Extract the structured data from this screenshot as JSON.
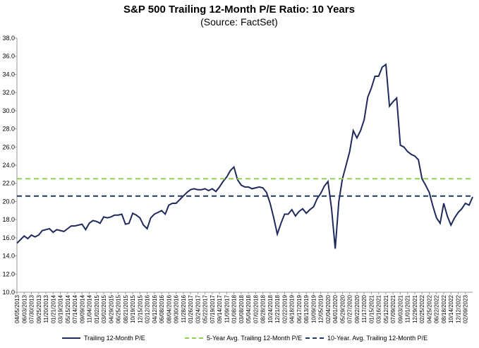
{
  "chart_data": {
    "type": "line",
    "title": "S&P 500 Trailing 12-Month P/E Ratio: 10 Years",
    "subtitle": "(Source: FactSet)",
    "categories": [
      "04/05/2013",
      null,
      "06/03/2013",
      null,
      "07/30/2013",
      null,
      "09/25/2013",
      null,
      "11/20/2013",
      null,
      "01/21/2014",
      null,
      "03/19/2014",
      null,
      "05/15/2014",
      null,
      "07/14/2014",
      null,
      "09/09/2014",
      null,
      "11/04/2014",
      null,
      "01/02/2015",
      null,
      "03/02/2015",
      null,
      "04/29/2015",
      null,
      "06/25/2015",
      null,
      "08/21/2015",
      null,
      "10/19/2015",
      null,
      "12/15/2015",
      null,
      "02/12/2016",
      null,
      "04/12/2016",
      null,
      "06/08/2016",
      null,
      "08/04/2016",
      null,
      "09/30/2016",
      null,
      "11/28/2016",
      null,
      "01/26/2017",
      null,
      "03/24/2017",
      null,
      "05/22/2017",
      null,
      "07/19/2017",
      null,
      "09/14/2017",
      null,
      "11/09/2017",
      null,
      "01/08/2018",
      null,
      "03/08/2018",
      null,
      "05/04/2018",
      null,
      "07/02/2018",
      null,
      "08/28/2018",
      null,
      "10/24/2018",
      null,
      "12/21/2018",
      null,
      "02/22/2019",
      null,
      "04/18/2019",
      null,
      "06/17/2019",
      null,
      "08/13/2019",
      null,
      "10/09/2019",
      null,
      "12/05/2019",
      null,
      "02/04/2020",
      null,
      "04/01/2020",
      null,
      "05/29/2020",
      null,
      "07/27/2020",
      null,
      "09/22/2020",
      null,
      "11/17/2020",
      null,
      "01/15/2021",
      null,
      "03/16/2021",
      null,
      "05/12/2021",
      null,
      "07/09/2021",
      null,
      "09/03/2021",
      null,
      "11/01/2021",
      null,
      "12/29/2021",
      null,
      "02/25/2022",
      null,
      "04/25/2022",
      null,
      "06/22/2022",
      null,
      "08/18/2022",
      null,
      "10/14/2022",
      null,
      "12/12/2022",
      null,
      "02/09/2023",
      null,
      null
    ],
    "series": [
      {
        "name": "Trailing 12-Month P/E",
        "color": "#1f2a5c",
        "values": [
          15.4,
          15.8,
          16.2,
          15.9,
          16.3,
          16.1,
          16.3,
          16.8,
          16.9,
          17.0,
          16.6,
          16.9,
          16.8,
          16.7,
          17.0,
          17.3,
          17.3,
          17.4,
          17.5,
          16.9,
          17.6,
          17.9,
          17.8,
          17.6,
          18.3,
          18.2,
          18.3,
          18.5,
          18.5,
          18.6,
          17.5,
          17.6,
          18.7,
          18.5,
          18.2,
          17.4,
          17.0,
          18.2,
          18.6,
          18.8,
          19.0,
          18.6,
          19.6,
          19.8,
          19.8,
          20.2,
          20.6,
          21.0,
          21.3,
          21.4,
          21.3,
          21.3,
          21.4,
          21.2,
          21.4,
          21.1,
          21.6,
          22.2,
          22.7,
          23.4,
          23.8,
          22.4,
          21.8,
          21.6,
          21.6,
          21.4,
          21.5,
          21.6,
          21.5,
          21.0,
          19.8,
          18.2,
          16.4,
          17.6,
          18.6,
          18.6,
          19.1,
          18.4,
          18.9,
          19.2,
          18.7,
          19.1,
          19.4,
          20.3,
          20.9,
          21.7,
          22.2,
          19.2,
          14.8,
          20.0,
          22.5,
          24.0,
          25.5,
          27.8,
          27.0,
          27.8,
          29.0,
          31.5,
          32.5,
          33.8,
          33.8,
          34.8,
          35.1,
          30.5,
          31.0,
          31.4,
          26.2,
          26.0,
          25.5,
          25.2,
          25.0,
          24.6,
          22.5,
          21.8,
          21.0,
          19.5,
          18.2,
          17.6,
          19.8,
          18.4,
          17.4,
          18.2,
          18.8,
          19.2,
          19.8,
          19.6,
          20.5
        ]
      },
      {
        "name": "5-Year Avg. Trailing 12-Month P/E",
        "color": "#92d050",
        "value": 22.5,
        "dashed": true
      },
      {
        "name": "10-Year. Avg. Trailing 12-Month P/E",
        "color": "#1f3864",
        "value": 20.6,
        "dashed": true
      }
    ],
    "ylim": [
      10,
      38
    ],
    "yticks": [
      {
        "value": 10,
        "label": "10.0"
      },
      {
        "value": 12,
        "label": "12.0"
      },
      {
        "value": 14,
        "label": "14.0"
      },
      {
        "value": 16,
        "label": "16.0"
      },
      {
        "value": 18,
        "label": "18.0"
      },
      {
        "value": 20,
        "label": "20.0"
      },
      {
        "value": 22,
        "label": "22.0"
      },
      {
        "value": 24,
        "label": "24.0"
      },
      {
        "value": 26,
        "label": "26.0"
      },
      {
        "value": 28,
        "label": "28.0"
      },
      {
        "value": 30,
        "label": "30.0"
      },
      {
        "value": 32,
        "label": "32.0"
      },
      {
        "value": 34,
        "label": "34.0"
      },
      {
        "value": 36,
        "label": "36.0"
      },
      {
        "value": 38,
        "label": "38.0"
      }
    ],
    "grid": false,
    "legend": "bottom"
  }
}
